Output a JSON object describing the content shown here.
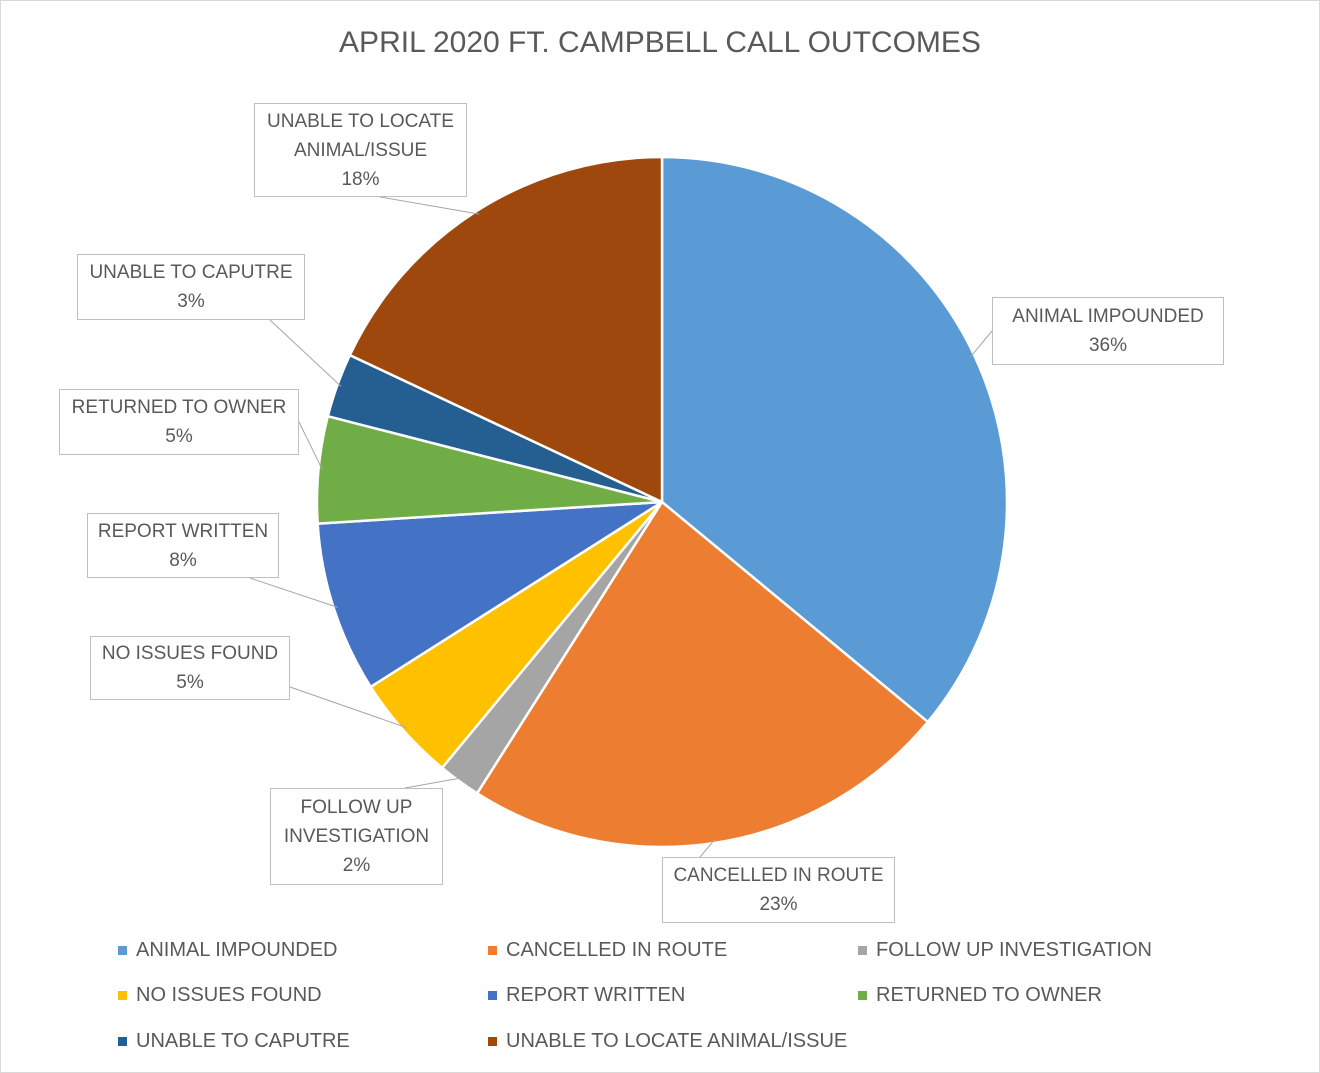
{
  "chart_data": {
    "type": "pie",
    "title": "APRIL 2020 FT. CAMPBELL CALL OUTCOMES",
    "categories": [
      "ANIMAL IMPOUNDED",
      "CANCELLED IN ROUTE",
      "FOLLOW UP INVESTIGATION",
      "NO ISSUES FOUND",
      "REPORT WRITTEN",
      "RETURNED TO OWNER",
      "UNABLE TO CAPUTRE",
      "UNABLE TO LOCATE ANIMAL/ISSUE"
    ],
    "values": [
      36,
      23,
      2,
      5,
      8,
      5,
      3,
      18
    ],
    "value_labels": [
      "36%",
      "23%",
      "2%",
      "5%",
      "8%",
      "5%",
      "3%",
      "18%"
    ],
    "colors": [
      "#5b9bd5",
      "#ed7d31",
      "#a5a5a5",
      "#ffc000",
      "#4472c4",
      "#70ad47",
      "#255e91",
      "#9e480e"
    ],
    "legend": "bottom"
  }
}
